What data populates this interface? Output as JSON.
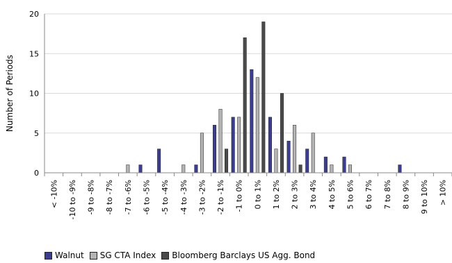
{
  "chart_data": {
    "type": "bar",
    "ylabel": "Number of Periods",
    "xlabel": "",
    "ylim": [
      0,
      20
    ],
    "yticks": [
      0,
      5,
      10,
      15,
      20
    ],
    "grid": "horizontal",
    "legend_placement": "bottom-left",
    "categories": [
      "< -10%",
      "-10 to -9%",
      "-9 to -8%",
      "-8 to -7%",
      "-7 to -6%",
      "-6 to -5%",
      "-5 to -4%",
      "-4 to -3%",
      "-3 to -2%",
      "-2 to -1%",
      "-1 to 0%",
      "0 to 1%",
      "1 to 2%",
      "2 to 3%",
      "3 to 4%",
      "4 to 5%",
      "5 to 6%",
      "6 to 7%",
      "7 to 8%",
      "8 to 9%",
      "9 to 10%",
      "> 10%"
    ],
    "series": [
      {
        "name": "Walnut",
        "color": "#3b3d8f",
        "values": [
          0,
          0,
          0,
          0,
          0,
          1,
          3,
          0,
          1,
          6,
          7,
          13,
          7,
          4,
          3,
          2,
          2,
          0,
          0,
          1,
          0,
          0
        ]
      },
      {
        "name": "SG CTA Index",
        "color": "#b3b3b3",
        "values": [
          0,
          0,
          0,
          0,
          1,
          0,
          0,
          1,
          5,
          8,
          7,
          12,
          3,
          6,
          5,
          1,
          1,
          0,
          0,
          0,
          0,
          0
        ]
      },
      {
        "name": "Bloomberg Barclays US Agg. Bond",
        "color": "#4a4a4a",
        "values": [
          0,
          0,
          0,
          0,
          0,
          0,
          0,
          0,
          0,
          3,
          17,
          19,
          10,
          1,
          0,
          0,
          0,
          0,
          0,
          0,
          0,
          0
        ]
      }
    ]
  }
}
